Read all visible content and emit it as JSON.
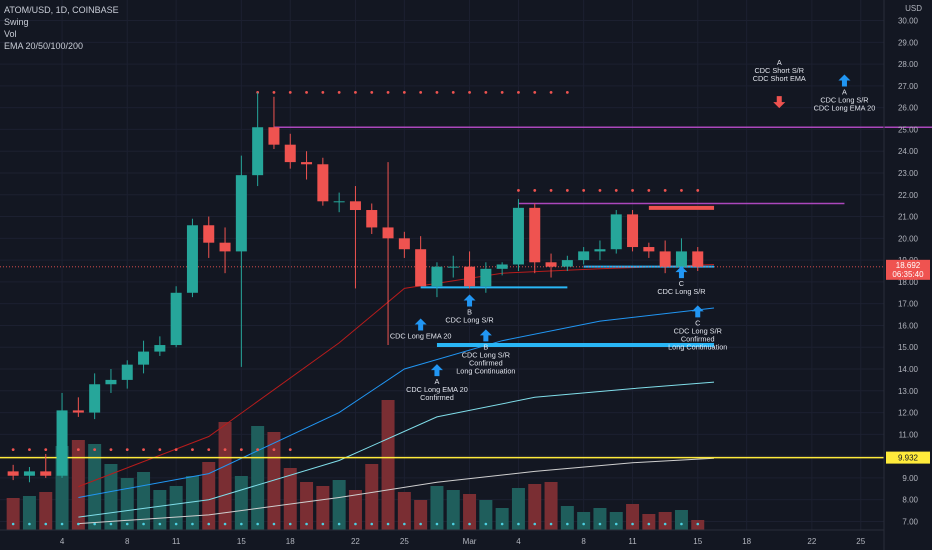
{
  "header": {
    "title": "ATOM/USD, 1D, COINBASE",
    "indicators": [
      "Swing",
      "Vol",
      "EMA 20/50/100/200"
    ],
    "currency": "USD"
  },
  "price_tags": {
    "last_price": "18.692",
    "countdown": "06:35:40",
    "hline_value": "9.932"
  },
  "colors": {
    "background": "#131722",
    "up": "#26a69a",
    "down": "#ef5350",
    "vol_up": "#1f5e5c",
    "vol_down": "#7a2e33",
    "ema20": "#b71c1c",
    "ema50": "#2196f3",
    "ema100": "#80deea",
    "ema200": "#cfcfcf",
    "resistance_line": "#ab47bc",
    "support_line": "#29b6f6",
    "yellow_line": "#ffeb3b",
    "signal_long": "#2196f3",
    "signal_short": "#ef5350"
  },
  "chart_data": {
    "type": "candlestick",
    "title": "ATOM/USD, 1D, COINBASE",
    "y_axis": {
      "ticks": [
        "7.00",
        "8.00",
        "9.00",
        "10.00",
        "11.00",
        "12.00",
        "13.00",
        "14.00",
        "15.00",
        "16.00",
        "17.00",
        "18.00",
        "19.00",
        "20.00",
        "21.00",
        "22.00",
        "23.00",
        "24.00",
        "25.00",
        "26.00",
        "27.00",
        "28.00",
        "29.00",
        "30.00"
      ],
      "ylim": [
        6.7,
        30.3
      ],
      "scale": "linear"
    },
    "x_axis": {
      "tick_labels": [
        "4",
        "8",
        "11",
        "15",
        "18",
        "22",
        "25",
        "Mar",
        "4",
        "8",
        "11",
        "15",
        "18",
        "22",
        "25"
      ]
    },
    "candles": [
      {
        "d": "Feb 1",
        "o": 9.3,
        "h": 9.6,
        "l": 8.9,
        "c": 9.1
      },
      {
        "d": "Feb 2",
        "o": 9.1,
        "h": 9.5,
        "l": 8.8,
        "c": 9.3
      },
      {
        "d": "Feb 3",
        "o": 9.3,
        "h": 10.1,
        "l": 9.0,
        "c": 9.1
      },
      {
        "d": "Feb 4",
        "o": 9.1,
        "h": 12.9,
        "l": 9.0,
        "c": 12.1
      },
      {
        "d": "Feb 5",
        "o": 12.1,
        "h": 12.7,
        "l": 11.8,
        "c": 12.0
      },
      {
        "d": "Feb 6",
        "o": 12.0,
        "h": 13.8,
        "l": 11.7,
        "c": 13.3
      },
      {
        "d": "Feb 7",
        "o": 13.3,
        "h": 14.0,
        "l": 12.9,
        "c": 13.5
      },
      {
        "d": "Feb 8",
        "o": 13.5,
        "h": 14.4,
        "l": 13.1,
        "c": 14.2
      },
      {
        "d": "Feb 9",
        "o": 14.2,
        "h": 15.3,
        "l": 13.8,
        "c": 14.8
      },
      {
        "d": "Feb 10",
        "o": 14.8,
        "h": 15.5,
        "l": 14.6,
        "c": 15.1
      },
      {
        "d": "Feb 11",
        "o": 15.1,
        "h": 17.8,
        "l": 15.0,
        "c": 17.5
      },
      {
        "d": "Feb 12",
        "o": 17.5,
        "h": 20.9,
        "l": 17.3,
        "c": 20.6
      },
      {
        "d": "Feb 13",
        "o": 20.6,
        "h": 21.0,
        "l": 19.1,
        "c": 19.8
      },
      {
        "d": "Feb 14",
        "o": 19.8,
        "h": 20.5,
        "l": 18.4,
        "c": 19.4
      },
      {
        "d": "Feb 15",
        "o": 19.4,
        "h": 23.8,
        "l": 14.1,
        "c": 22.9
      },
      {
        "d": "Feb 16",
        "o": 22.9,
        "h": 26.7,
        "l": 22.4,
        "c": 25.1
      },
      {
        "d": "Feb 17",
        "o": 25.1,
        "h": 26.5,
        "l": 24.1,
        "c": 24.3
      },
      {
        "d": "Feb 18",
        "o": 24.3,
        "h": 24.8,
        "l": 23.2,
        "c": 23.5
      },
      {
        "d": "Feb 19",
        "o": 23.5,
        "h": 24.0,
        "l": 22.7,
        "c": 23.4
      },
      {
        "d": "Feb 20",
        "o": 23.4,
        "h": 23.7,
        "l": 21.5,
        "c": 21.7
      },
      {
        "d": "Feb 21",
        "o": 21.7,
        "h": 22.1,
        "l": 21.2,
        "c": 21.7
      },
      {
        "d": "Feb 22",
        "o": 21.7,
        "h": 22.4,
        "l": 17.7,
        "c": 21.3
      },
      {
        "d": "Feb 23",
        "o": 21.3,
        "h": 21.6,
        "l": 20.2,
        "c": 20.5
      },
      {
        "d": "Feb 24",
        "o": 20.5,
        "h": 23.5,
        "l": 15.1,
        "c": 20.0
      },
      {
        "d": "Feb 25",
        "o": 20.0,
        "h": 20.3,
        "l": 19.1,
        "c": 19.5
      },
      {
        "d": "Feb 26",
        "o": 19.5,
        "h": 20.1,
        "l": 17.9,
        "c": 17.8
      },
      {
        "d": "Feb 27",
        "o": 17.8,
        "h": 18.9,
        "l": 17.3,
        "c": 18.7
      },
      {
        "d": "Feb 28",
        "o": 18.7,
        "h": 19.2,
        "l": 18.2,
        "c": 18.7
      },
      {
        "d": "Mar 1",
        "o": 18.7,
        "h": 19.4,
        "l": 17.7,
        "c": 17.8
      },
      {
        "d": "Mar 2",
        "o": 17.8,
        "h": 18.9,
        "l": 17.5,
        "c": 18.6
      },
      {
        "d": "Mar 3",
        "o": 18.6,
        "h": 18.9,
        "l": 18.3,
        "c": 18.8
      },
      {
        "d": "Mar 4",
        "o": 18.8,
        "h": 21.8,
        "l": 18.5,
        "c": 21.4
      },
      {
        "d": "Mar 5",
        "o": 21.4,
        "h": 21.6,
        "l": 18.4,
        "c": 18.9
      },
      {
        "d": "Mar 6",
        "o": 18.9,
        "h": 19.3,
        "l": 18.2,
        "c": 18.7
      },
      {
        "d": "Mar 7",
        "o": 18.7,
        "h": 19.2,
        "l": 18.5,
        "c": 19.0
      },
      {
        "d": "Mar 8",
        "o": 19.0,
        "h": 19.6,
        "l": 18.8,
        "c": 19.4
      },
      {
        "d": "Mar 9",
        "o": 19.4,
        "h": 19.9,
        "l": 19.0,
        "c": 19.5
      },
      {
        "d": "Mar 10",
        "o": 19.5,
        "h": 21.3,
        "l": 19.3,
        "c": 21.1
      },
      {
        "d": "Mar 11",
        "o": 21.1,
        "h": 21.3,
        "l": 19.4,
        "c": 19.6
      },
      {
        "d": "Mar 12",
        "o": 19.6,
        "h": 19.8,
        "l": 19.1,
        "c": 19.4
      },
      {
        "d": "Mar 13",
        "o": 19.4,
        "h": 19.9,
        "l": 18.4,
        "c": 18.7
      },
      {
        "d": "Mar 14",
        "o": 18.7,
        "h": 20.0,
        "l": 18.4,
        "c": 19.4
      },
      {
        "d": "Mar 15",
        "o": 19.4,
        "h": 19.6,
        "l": 18.5,
        "c": 18.7
      }
    ],
    "volumes": [
      1.6,
      1.7,
      1.9,
      4.2,
      4.5,
      4.3,
      3.3,
      2.6,
      2.9,
      2.0,
      2.2,
      2.7,
      3.4,
      5.4,
      2.7,
      5.2,
      4.9,
      3.1,
      2.4,
      2.2,
      2.5,
      2.0,
      3.3,
      6.5,
      1.9,
      1.5,
      2.2,
      2.0,
      1.8,
      1.5,
      1.1,
      2.1,
      2.3,
      2.4,
      1.2,
      0.9,
      1.1,
      0.9,
      1.3,
      0.8,
      0.9,
      1.0,
      0.5
    ],
    "ema": [
      {
        "name": "EMA 20",
        "points": [
          [
            4,
            8.6
          ],
          [
            12,
            10.9
          ],
          [
            20,
            15.2
          ],
          [
            24,
            17.7
          ],
          [
            30,
            18.4
          ],
          [
            36,
            18.6
          ],
          [
            43,
            18.8
          ]
        ]
      },
      {
        "name": "EMA 50",
        "points": [
          [
            4,
            8.1
          ],
          [
            12,
            9.2
          ],
          [
            20,
            12.0
          ],
          [
            24,
            14.0
          ],
          [
            30,
            15.3
          ],
          [
            36,
            16.2
          ],
          [
            43,
            16.8
          ]
        ]
      },
      {
        "name": "EMA 100",
        "points": [
          [
            4,
            7.2
          ],
          [
            12,
            8.0
          ],
          [
            20,
            9.8
          ],
          [
            26,
            11.8
          ],
          [
            32,
            12.7
          ],
          [
            38,
            13.1
          ],
          [
            43,
            13.4
          ]
        ]
      },
      {
        "name": "EMA 200",
        "points": [
          [
            4,
            6.9
          ],
          [
            12,
            7.3
          ],
          [
            20,
            8.1
          ],
          [
            26,
            8.8
          ],
          [
            32,
            9.3
          ],
          [
            38,
            9.7
          ],
          [
            43,
            9.9
          ]
        ]
      }
    ],
    "levels": [
      {
        "kind": "resistance",
        "value": 25.1,
        "from": 16,
        "to": 57
      },
      {
        "kind": "resistance",
        "value": 21.6,
        "from": 31,
        "to": 51
      },
      {
        "kind": "support",
        "value": 17.75,
        "from": 25,
        "to": 34
      },
      {
        "kind": "support",
        "value": 18.7,
        "from": 35,
        "to": 43
      },
      {
        "kind": "support_thick",
        "value": 15.1,
        "from": 26,
        "to": 43
      },
      {
        "kind": "highlight",
        "value": 21.4,
        "from": 39,
        "to": 43
      },
      {
        "kind": "horizontal",
        "value": 9.932,
        "from": 0,
        "to": 60
      },
      {
        "kind": "price",
        "value": 18.692,
        "from": 0,
        "to": 60
      }
    ],
    "swing_dots": [
      {
        "value": 26.7,
        "from": 15,
        "to": 34
      },
      {
        "value": 22.2,
        "from": 31,
        "to": 42
      },
      {
        "value": 10.3,
        "from": 0,
        "to": 17
      }
    ],
    "signals": [
      {
        "id": "long-ema20",
        "dir": "up",
        "x": 25,
        "y": 16.0,
        "lines": [
          "CDC Long EMA 20"
        ]
      },
      {
        "id": "long-sr-b",
        "dir": "up",
        "x": 28,
        "y": 17.1,
        "lines": [
          "B",
          "CDC Long S/R"
        ]
      },
      {
        "id": "long-confirmed-b",
        "dir": "up",
        "x": 29,
        "y": 15.5,
        "lines": [
          "B",
          "CDC Long S/R",
          "Confirmed",
          "Long Continuation"
        ]
      },
      {
        "id": "long-ema20-a",
        "dir": "up",
        "x": 26,
        "y": 13.9,
        "lines": [
          "A",
          "CDC Long EMA 20",
          "Confirmed"
        ]
      },
      {
        "id": "long-sr-c",
        "dir": "up",
        "x": 41,
        "y": 18.4,
        "lines": [
          "C",
          "CDC Long S/R"
        ]
      },
      {
        "id": "long-confirmed-c",
        "dir": "up",
        "x": 42,
        "y": 16.6,
        "lines": [
          "C",
          "CDC Long S/R",
          "Confirmed",
          "Long Continuation"
        ]
      },
      {
        "id": "short-a",
        "dir": "down",
        "x": 47,
        "y": 26.3,
        "lines": [
          "A",
          "CDC Short S/R",
          "CDC Short EMA"
        ]
      },
      {
        "id": "long-sr-a",
        "dir": "up",
        "x": 51,
        "y": 27.2,
        "lines": [
          "A",
          "CDC Long S/R",
          "CDC Long EMA 20"
        ]
      }
    ]
  }
}
